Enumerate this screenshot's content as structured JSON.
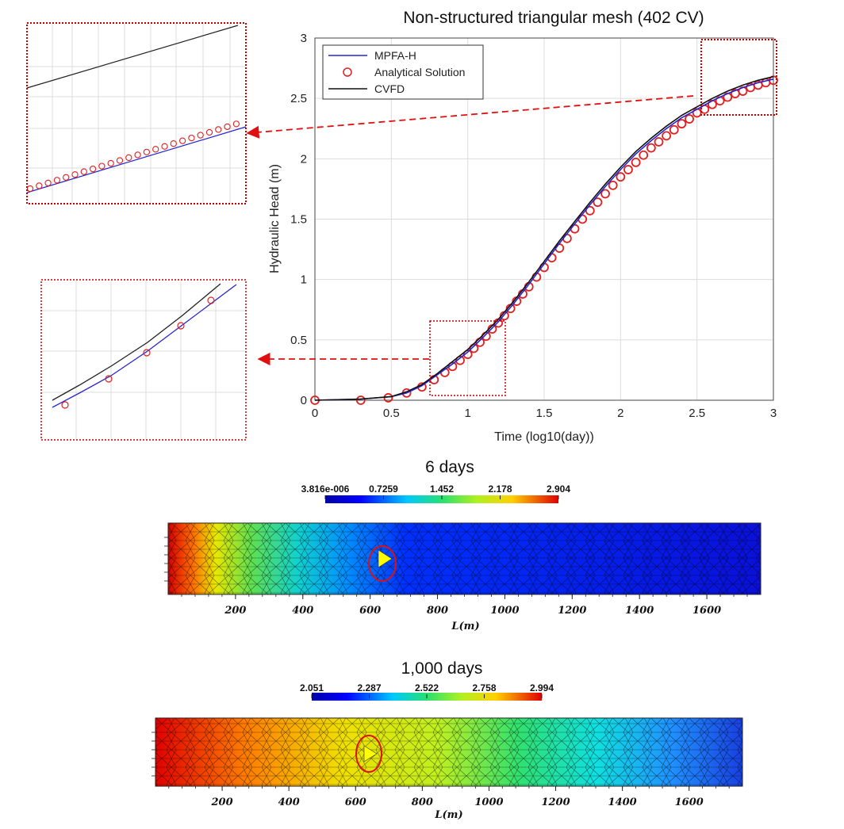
{
  "chart_data": [
    {
      "type": "line",
      "title": "Non-structured triangular mesh (402 CV)",
      "xlabel": "Time (log10(day))",
      "ylabel": "Hydraulic Head (m)",
      "xlim": [
        0,
        3
      ],
      "ylim": [
        0,
        3
      ],
      "xticks": [
        "0",
        "0.5",
        "1",
        "1.5",
        "2",
        "2.5",
        "3"
      ],
      "yticks": [
        "0",
        "0.5",
        "1",
        "1.5",
        "2",
        "2.5",
        "3"
      ],
      "grid": true,
      "legend_position": "top-left",
      "series": [
        {
          "name": "MPFA-H",
          "color": "#2525d0",
          "style": "line",
          "x": [
            0,
            0.3,
            0.5,
            0.6,
            0.7,
            0.8,
            0.9,
            1.0,
            1.1,
            1.2,
            1.3,
            1.4,
            1.5,
            1.6,
            1.7,
            1.8,
            1.9,
            2.0,
            2.1,
            2.2,
            2.3,
            2.4,
            2.5,
            2.6,
            2.7,
            2.8,
            2.9,
            3.0
          ],
          "y": [
            0.0,
            0.01,
            0.03,
            0.06,
            0.12,
            0.21,
            0.3,
            0.4,
            0.52,
            0.65,
            0.8,
            0.96,
            1.13,
            1.3,
            1.46,
            1.62,
            1.77,
            1.91,
            2.04,
            2.15,
            2.25,
            2.34,
            2.41,
            2.48,
            2.54,
            2.59,
            2.63,
            2.66
          ]
        },
        {
          "name": "Analytical Solution",
          "color": "#e02020",
          "style": "marker-circle",
          "x": [
            0,
            0.3,
            0.48,
            0.6,
            0.7,
            0.78,
            0.85,
            0.9,
            0.95,
            1.0,
            1.04,
            1.08,
            1.12,
            1.16,
            1.2,
            1.24,
            1.28,
            1.32,
            1.36,
            1.4,
            1.45,
            1.5,
            1.55,
            1.6,
            1.65,
            1.7,
            1.75,
            1.8,
            1.85,
            1.9,
            1.95,
            2.0,
            2.05,
            2.1,
            2.15,
            2.2,
            2.25,
            2.3,
            2.35,
            2.4,
            2.45,
            2.5,
            2.55,
            2.6,
            2.65,
            2.7,
            2.75,
            2.8,
            2.85,
            2.9,
            2.95,
            3.0
          ],
          "y": [
            0.0,
            0.0,
            0.02,
            0.06,
            0.11,
            0.17,
            0.23,
            0.28,
            0.33,
            0.38,
            0.43,
            0.48,
            0.53,
            0.59,
            0.64,
            0.7,
            0.76,
            0.82,
            0.88,
            0.94,
            1.02,
            1.1,
            1.18,
            1.26,
            1.34,
            1.42,
            1.5,
            1.57,
            1.64,
            1.71,
            1.78,
            1.85,
            1.91,
            1.97,
            2.03,
            2.09,
            2.14,
            2.19,
            2.24,
            2.29,
            2.33,
            2.38,
            2.41,
            2.45,
            2.48,
            2.51,
            2.54,
            2.56,
            2.59,
            2.61,
            2.63,
            2.65
          ]
        },
        {
          "name": "CVFD",
          "color": "#111111",
          "style": "line",
          "x": [
            0,
            0.3,
            0.5,
            0.6,
            0.7,
            0.8,
            0.9,
            1.0,
            1.1,
            1.2,
            1.3,
            1.4,
            1.5,
            1.6,
            1.7,
            1.8,
            1.9,
            2.0,
            2.1,
            2.2,
            2.3,
            2.4,
            2.5,
            2.6,
            2.7,
            2.8,
            2.9,
            3.0
          ],
          "y": [
            0.0,
            0.01,
            0.03,
            0.07,
            0.13,
            0.22,
            0.32,
            0.42,
            0.54,
            0.67,
            0.82,
            0.98,
            1.15,
            1.32,
            1.48,
            1.64,
            1.79,
            1.93,
            2.06,
            2.17,
            2.27,
            2.36,
            2.43,
            2.5,
            2.56,
            2.61,
            2.65,
            2.68
          ]
        }
      ],
      "annotations": [
        {
          "kind": "zoom-box",
          "target": "upper-right region",
          "xrange": [
            2.55,
            3.0
          ],
          "yrange": [
            2.35,
            2.98
          ]
        },
        {
          "kind": "zoom-box",
          "target": "middle region",
          "xrange": [
            0.75,
            1.25
          ],
          "yrange": [
            0.03,
            0.66
          ]
        }
      ]
    },
    {
      "type": "heatmap",
      "title": "6 days",
      "xlabel": "L(m)",
      "xticks": [
        "200",
        "400",
        "600",
        "800",
        "1000",
        "1200",
        "1400",
        "1600"
      ],
      "xlim": [
        0,
        1760
      ],
      "colorbar_labels": [
        "3.816e-006",
        "0.7259",
        "1.452",
        "2.178",
        "2.904"
      ],
      "colorbar_range": [
        3.816e-06,
        2.904
      ],
      "gradient_front_m": 450,
      "well_marker_m": 640
    },
    {
      "type": "heatmap",
      "title": "1,000 days",
      "xlabel": "L(m)",
      "xticks": [
        "200",
        "400",
        "600",
        "800",
        "1000",
        "1200",
        "1400",
        "1600"
      ],
      "xlim": [
        0,
        1760
      ],
      "colorbar_labels": [
        "2.051",
        "2.287",
        "2.522",
        "2.758",
        "2.994"
      ],
      "colorbar_range": [
        2.051,
        2.994
      ],
      "well_marker_m": 640
    }
  ],
  "colors": {
    "zoom_box": "#c00000",
    "arrow": "#e01010",
    "marker": "#ffff00",
    "ellipse": "#e01010"
  }
}
